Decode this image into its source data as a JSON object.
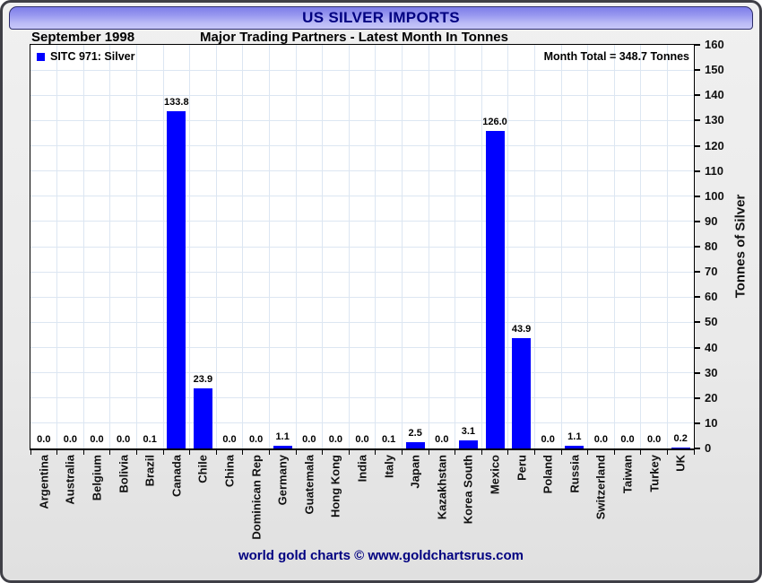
{
  "header": {
    "title": "US SILVER IMPORTS",
    "date_label": "September 1998",
    "subtitle": "Major Trading Partners - Latest Month In Tonnes"
  },
  "legend": {
    "label": "SITC 971: Silver"
  },
  "annotations": {
    "month_total": "Month Total = 348.7 Tonnes"
  },
  "footer": {
    "text": "world gold charts © www.goldchartsrus.com"
  },
  "colors": {
    "bar": "#0000ff",
    "title_navy": "#000080",
    "grid": "#dce6f2",
    "header_gradient_top": "#7d7de9",
    "header_gradient_bottom": "#c6c6f9"
  },
  "chart_data": {
    "type": "bar",
    "title": "US SILVER IMPORTS",
    "subtitle": "Major Trading Partners - Latest Month In Tonnes",
    "period": "September 1998",
    "series_name": "SITC 971: Silver",
    "month_total_tonnes": 348.7,
    "categories": [
      "Argentina",
      "Australia",
      "Belgium",
      "Bolivia",
      "Brazil",
      "Canada",
      "Chile",
      "China",
      "Dominican Rep",
      "Germany",
      "Guatemala",
      "Hong Kong",
      "India",
      "Italy",
      "Japan",
      "Kazakhstan",
      "Korea South",
      "Mexico",
      "Peru",
      "Poland",
      "Russia",
      "Switzerland",
      "Taiwan",
      "Turkey",
      "UK"
    ],
    "values": [
      0.0,
      0.0,
      0.0,
      0.0,
      0.1,
      133.8,
      23.9,
      0.0,
      0.0,
      1.1,
      0.0,
      0.0,
      0.0,
      0.1,
      2.5,
      0.0,
      3.1,
      126.0,
      43.9,
      0.0,
      1.1,
      0.0,
      0.0,
      0.0,
      0.2
    ],
    "xlabel": "",
    "ylabel": "Tonnes of Silver",
    "ylim": [
      0,
      160
    ],
    "ytick_step": 10,
    "yticks": [
      0,
      10,
      20,
      30,
      40,
      50,
      60,
      70,
      80,
      90,
      100,
      110,
      120,
      130,
      140,
      150,
      160
    ],
    "grid": true,
    "bar_color": "#0000ff",
    "legend_position": "top-left",
    "value_labels": true
  }
}
